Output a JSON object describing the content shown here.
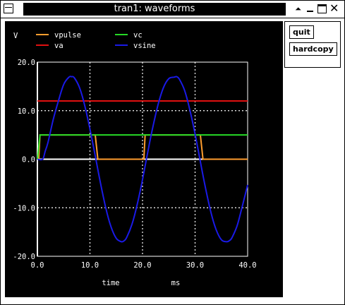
{
  "window": {
    "title": "tran1: waveforms",
    "controls": {
      "shade": "⏶",
      "minimize": "",
      "maximize": "",
      "close": "✕"
    }
  },
  "side_panel": {
    "quit_label": "quit",
    "hardcopy_label": "hardcopy"
  },
  "colors": {
    "background": "#000000",
    "vpulse": "#ff9d2e",
    "va": "#e01010",
    "vc": "#26d926",
    "vsine": "#1a1ae6",
    "grid": "#ffffff"
  },
  "chart_data": {
    "type": "line",
    "ylabel": "V",
    "xlabel": "time",
    "xunit": "ms",
    "xlim": [
      0,
      40
    ],
    "ylim": [
      -20,
      20
    ],
    "x_ticks": [
      "0.0",
      "10.0",
      "20.0",
      "30.0",
      "40.0"
    ],
    "y_ticks": [
      "20.0",
      "10.0",
      "0.0",
      "-10.0",
      "-20.0"
    ],
    "grid": true,
    "legend_position": "top",
    "series": [
      {
        "name": "vpulse",
        "color": "#ff9d2e",
        "x": [
          0,
          0.25,
          0.5,
          11,
          11.5,
          20.25,
          20.5,
          31,
          31.5,
          40
        ],
        "y": [
          0,
          0,
          5,
          5,
          0,
          0,
          5,
          5,
          0,
          0
        ]
      },
      {
        "name": "va",
        "color": "#e01010",
        "x": [
          0,
          40
        ],
        "y": [
          12,
          12
        ]
      },
      {
        "name": "vc",
        "color": "#26d926",
        "x": [
          0,
          0.5,
          40
        ],
        "y": [
          0,
          5,
          5
        ]
      },
      {
        "name": "vsine",
        "color": "#1a1ae6",
        "x": [
          0,
          1,
          1.5,
          2,
          3,
          4,
          5,
          6,
          6.5,
          7,
          8,
          9,
          10,
          11,
          12,
          13,
          14,
          15,
          16,
          16.5,
          17,
          18,
          19,
          20,
          21,
          22,
          23,
          24,
          25,
          26,
          26.5,
          27,
          28,
          29,
          30,
          31,
          32,
          33,
          34,
          35,
          36,
          36.5,
          37,
          38,
          39,
          40
        ],
        "y": [
          0,
          0,
          1.7,
          3.4,
          8.1,
          12.0,
          15.4,
          16.9,
          17.0,
          16.8,
          14.8,
          11.1,
          6.2,
          0.7,
          -4.9,
          -10.0,
          -13.9,
          -16.3,
          -17.0,
          -16.8,
          -16.1,
          -13.4,
          -9.3,
          -4.2,
          1.5,
          6.8,
          11.4,
          14.8,
          16.6,
          16.9,
          17.0,
          16.5,
          14.2,
          10.2,
          5.2,
          -0.5,
          -6.0,
          -10.9,
          -14.5,
          -16.6,
          -17.0,
          -16.8,
          -16.2,
          -13.7,
          -9.6,
          -5.3
        ]
      }
    ]
  }
}
